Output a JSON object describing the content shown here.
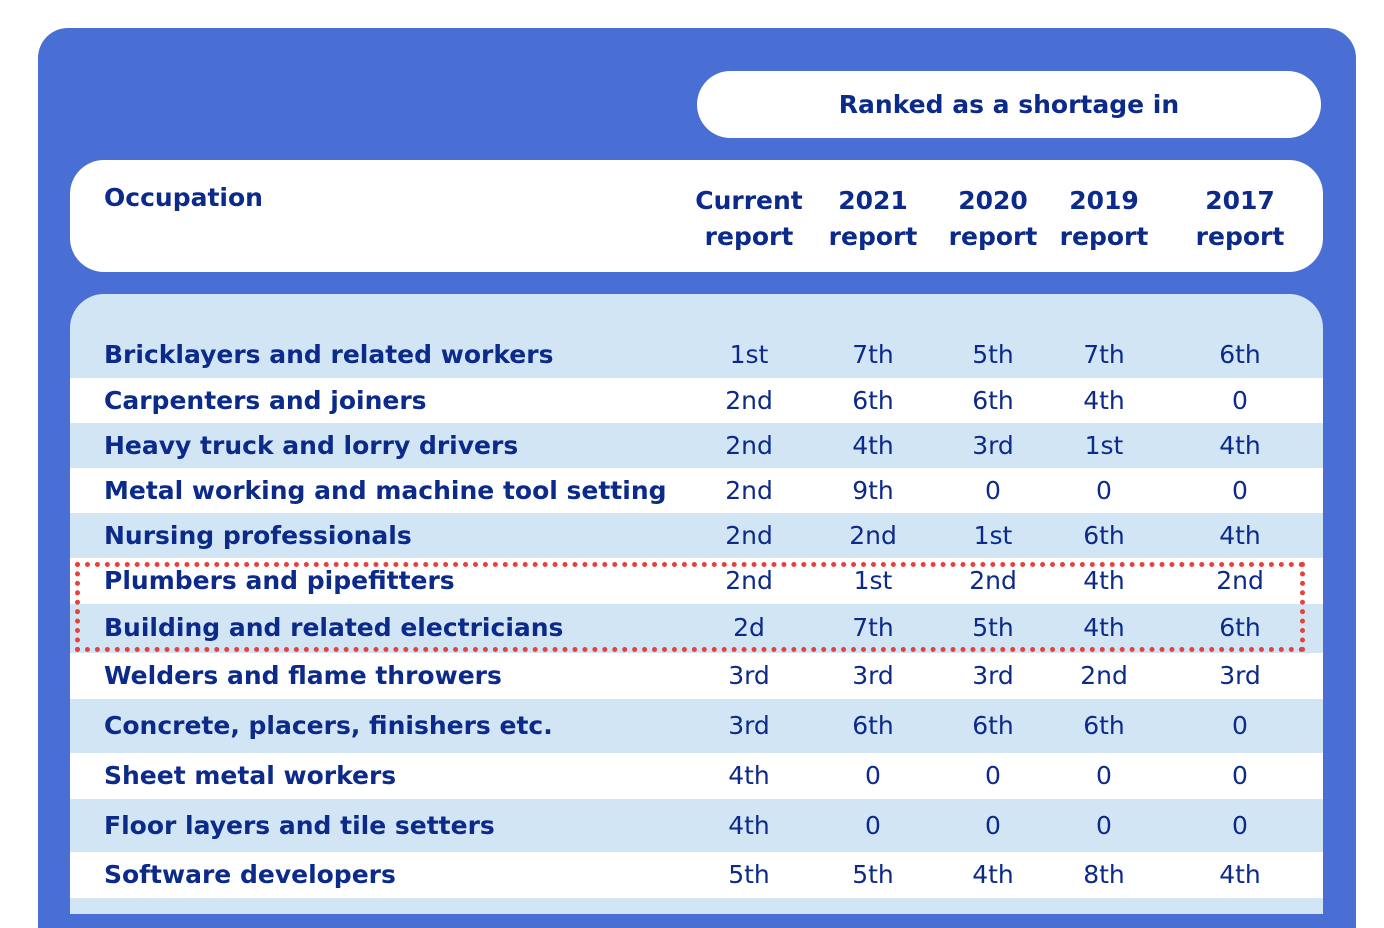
{
  "header": {
    "ranked_label": "Ranked as a shortage in",
    "occupation_label": "Occupation",
    "columns": [
      {
        "line1": "Current",
        "line2": "report"
      },
      {
        "line1": "2021",
        "line2": "report"
      },
      {
        "line1": "2020",
        "line2": "report"
      },
      {
        "line1": "2019",
        "line2": "report"
      },
      {
        "line1": "2017",
        "line2": "report"
      }
    ]
  },
  "rows": [
    {
      "occupation": "Bricklayers and related workers",
      "values": [
        "1st",
        "7th",
        "5th",
        "7th",
        "6th"
      ]
    },
    {
      "occupation": "Carpenters and joiners",
      "values": [
        "2nd",
        "6th",
        "6th",
        "4th",
        "0"
      ]
    },
    {
      "occupation": "Heavy truck and lorry drivers",
      "values": [
        "2nd",
        "4th",
        "3rd",
        "1st",
        "4th"
      ]
    },
    {
      "occupation": "Metal working and machine tool setting",
      "values": [
        "2nd",
        "9th",
        "0",
        "0",
        "0"
      ]
    },
    {
      "occupation": "Nursing professionals",
      "values": [
        "2nd",
        "2nd",
        "1st",
        "6th",
        "4th"
      ]
    },
    {
      "occupation": "Plumbers and pipefitters",
      "values": [
        "2nd",
        "1st",
        "2nd",
        "4th",
        "2nd"
      ]
    },
    {
      "occupation": "Building and related electricians",
      "values": [
        "2d",
        "7th",
        "5th",
        "4th",
        "6th"
      ]
    },
    {
      "occupation": "Welders and flame throwers",
      "values": [
        "3rd",
        "3rd",
        "3rd",
        "2nd",
        "3rd"
      ]
    },
    {
      "occupation": "Concrete, placers, finishers etc.",
      "values": [
        "3rd",
        "6th",
        "6th",
        "6th",
        "0"
      ]
    },
    {
      "occupation": "Sheet metal workers",
      "values": [
        "4th",
        "0",
        "0",
        "0",
        "0"
      ]
    },
    {
      "occupation": "Floor layers and tile setters",
      "values": [
        "4th",
        "0",
        "0",
        "0",
        "0"
      ]
    },
    {
      "occupation": "Software developers",
      "values": [
        "5th",
        "5th",
        "4th",
        "8th",
        "4th"
      ]
    }
  ],
  "colors": {
    "panel": "#4a6fd4",
    "text": "#0b2a8a",
    "row_alt": "#d2e5f4",
    "highlight": "#e8413b"
  }
}
